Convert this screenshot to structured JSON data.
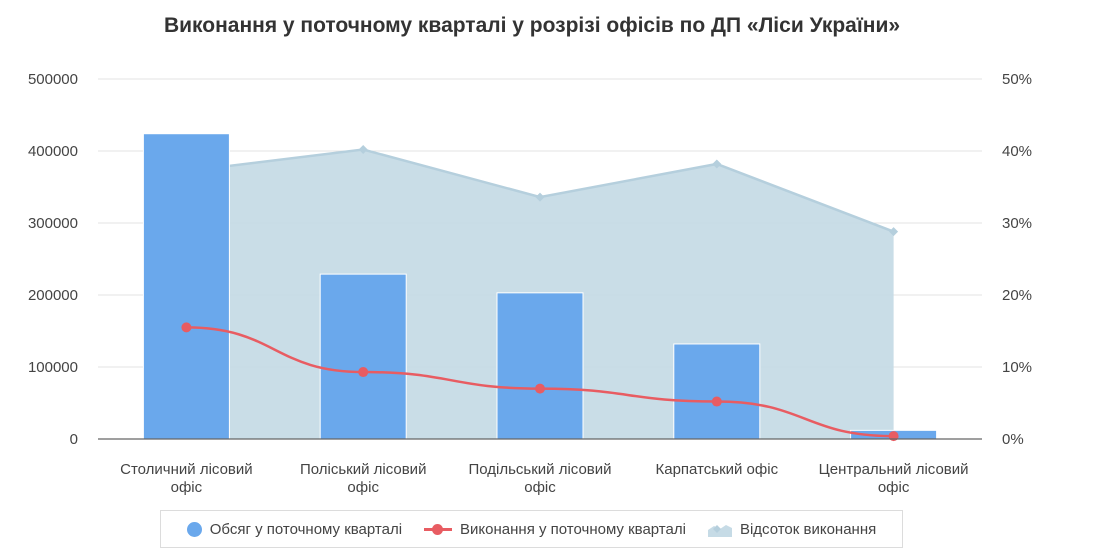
{
  "chart_data": {
    "type": "bar",
    "title": "Виконання у поточному кварталі у розрізі офісів по ДП «Ліси України»",
    "categories": [
      [
        "Столичний лісовий",
        "офіс"
      ],
      [
        "Поліський лісовий",
        "офіс"
      ],
      [
        "Подільський лісовий",
        "офіс"
      ],
      [
        "Карпатський офіс"
      ],
      [
        "Центральний лісовий",
        "офіс"
      ]
    ],
    "left_axis": {
      "ylim": [
        0,
        500000
      ],
      "ticks": [
        "0",
        "100000",
        "200000",
        "300000",
        "400000",
        "500000"
      ]
    },
    "right_axis": {
      "ylim": [
        0,
        50
      ],
      "ticks": [
        "0%",
        "10%",
        "20%",
        "30%",
        "40%",
        "50%"
      ]
    },
    "grid": true,
    "legend_position": "bottom",
    "series": [
      {
        "name": "Обсяг у поточному кварталі",
        "type": "bar",
        "axis": "left",
        "values": [
          424000,
          229000,
          203000,
          132000,
          12000
        ],
        "color": "#6aa8ec"
      },
      {
        "name": "Виконання у поточному кварталі",
        "type": "line",
        "axis": "left",
        "values": [
          155000,
          93000,
          70000,
          52000,
          4000
        ],
        "color": "#e85c62"
      },
      {
        "name": "Відсоток виконання",
        "type": "area",
        "axis": "right",
        "values": [
          37,
          40.2,
          33.6,
          38.2,
          28.8
        ],
        "color": "#c6dbe6",
        "line_color": "#b5cfdd"
      }
    ]
  },
  "legend": {
    "items": [
      {
        "label": "Обсяг у поточному кварталі",
        "icon": "circle-icon",
        "color": "#6aa8ec"
      },
      {
        "label": "Виконання у поточному кварталі",
        "icon": "line-dot-icon",
        "color": "#e85c62"
      },
      {
        "label": "Відсоток виконання",
        "icon": "area-icon",
        "color": "#b5cfdd"
      }
    ]
  }
}
